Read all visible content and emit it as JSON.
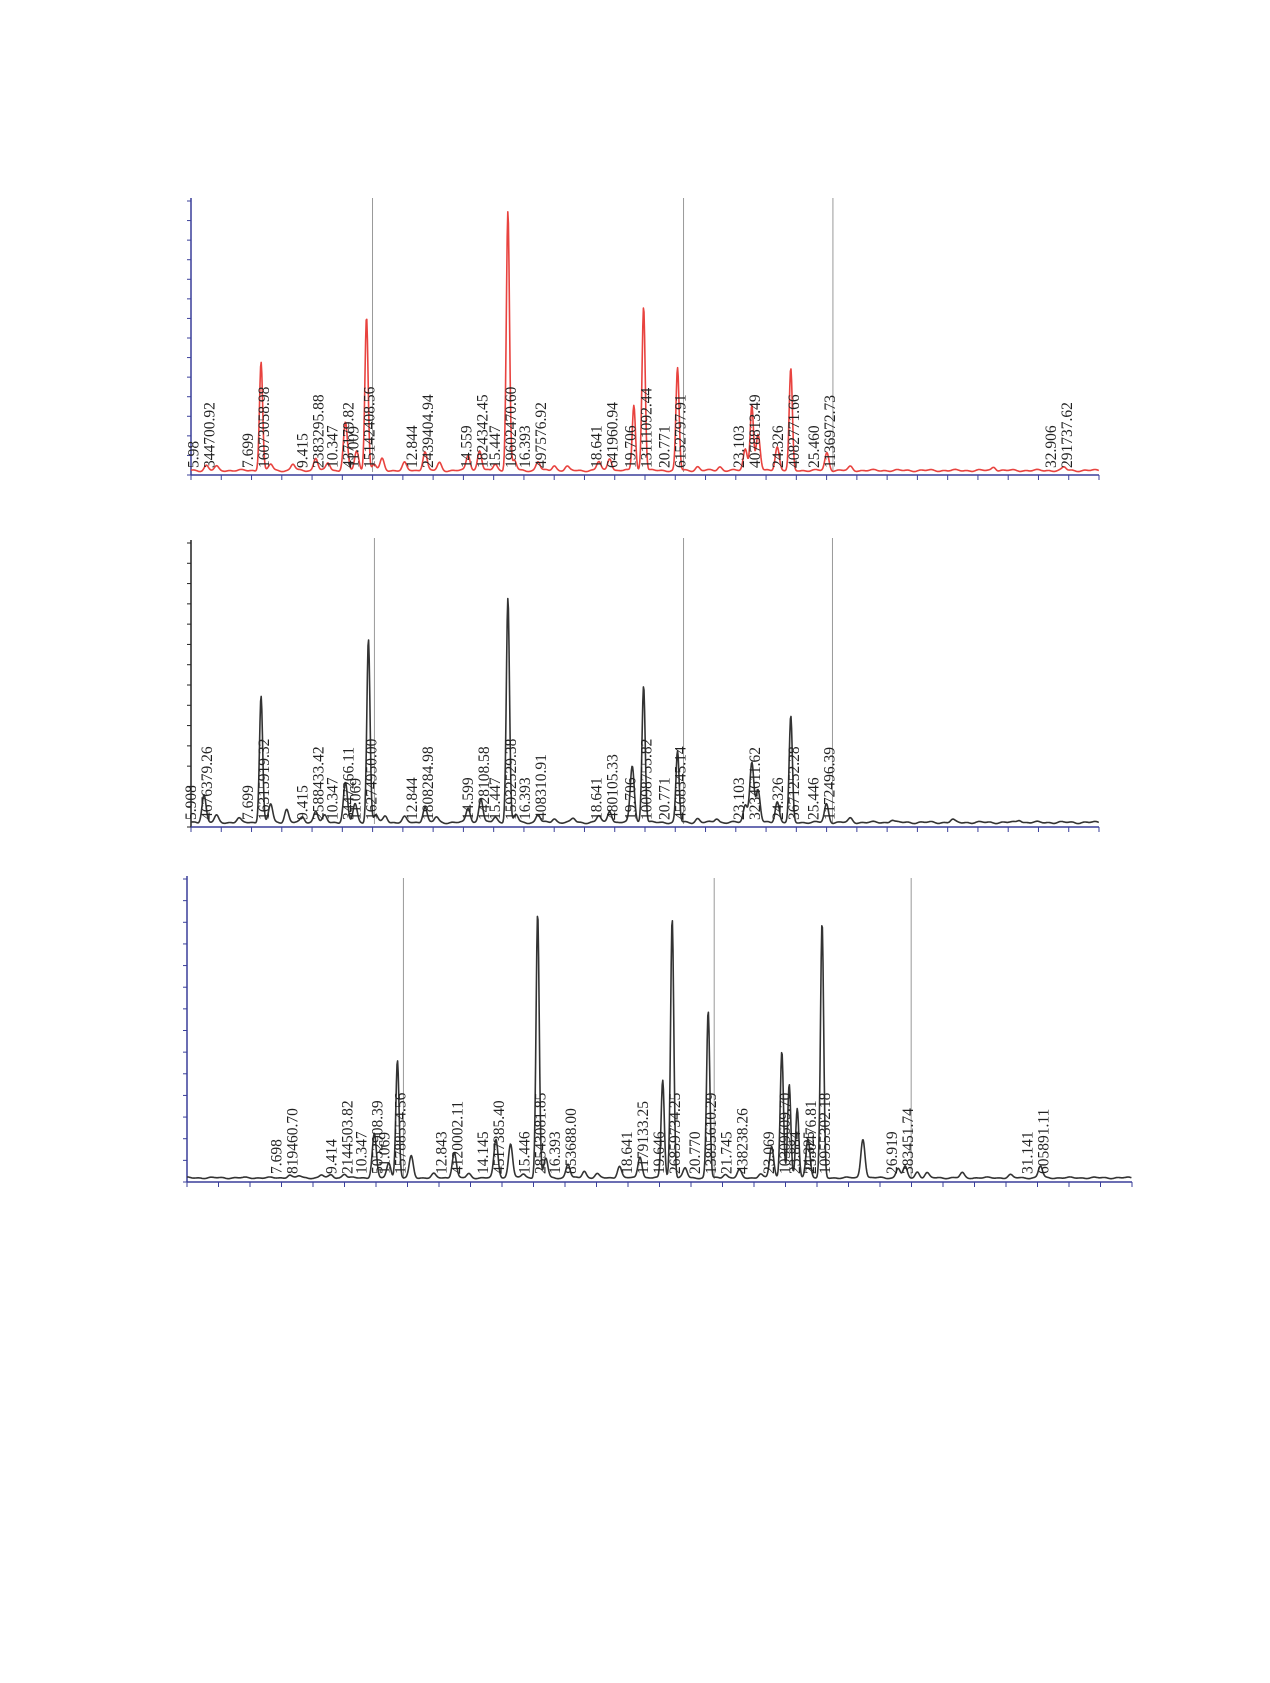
{
  "chart_data": [
    {
      "type": "line",
      "color": "#e8433f",
      "title": "",
      "xlabel": "",
      "ylabel": "",
      "xlim": [
        5.5,
        34.0
      ],
      "ylim": [
        0,
        21500000
      ],
      "grid": false,
      "marker_lines_at": [
        11.009,
        20.771,
        25.46
      ],
      "peaks": [
        {
          "rt": "5.98",
          "area": "344700.92",
          "x": 5.98,
          "h": 0.4
        },
        {
          "rt": "7.699",
          "area": "16073058.98",
          "x": 7.699,
          "h": 8.6
        },
        {
          "rt": "9.415",
          "area": "2383295.88",
          "x": 9.415,
          "h": 1.0
        },
        {
          "rt": "10.347",
          "area": "437179.82",
          "x": 10.347,
          "h": 3.8
        },
        {
          "rt": "11.009",
          "area": "15142408.56",
          "x": 11.009,
          "h": 12.2
        },
        {
          "rt": "12.844",
          "area": "2439404.94",
          "x": 12.844,
          "h": 1.5
        },
        {
          "rt": "14.559",
          "area": "1824342.45",
          "x": 14.559,
          "h": 1.6
        },
        {
          "rt": "15.447",
          "area": "19602470.60",
          "x": 15.447,
          "h": 20.5
        },
        {
          "rt": "16.393",
          "area": "497576.92",
          "x": 16.393,
          "h": 0.7
        },
        {
          "rt": "18.641",
          "area": "641960.94",
          "x": 18.641,
          "h": 1.0
        },
        {
          "rt": "19.706",
          "area": "13111092.44",
          "x": 19.706,
          "h": 13.0
        },
        {
          "rt": "20.771",
          "area": "6152797.91",
          "x": 20.771,
          "h": 8.1
        },
        {
          "rt": "23.103",
          "area": "4078813.49",
          "x": 23.103,
          "h": 5.2
        },
        {
          "rt": "24.326",
          "area": "4082771.66",
          "x": 24.326,
          "h": 8.0
        },
        {
          "rt": "25.460",
          "area": "1136972.73",
          "x": 25.46,
          "h": 1.4
        },
        {
          "rt": "32.906",
          "area": "291737.62",
          "x": 32.906,
          "h": 0.25
        }
      ],
      "minor_peaks": [
        [
          6.3,
          0.3
        ],
        [
          8.0,
          0.5
        ],
        [
          8.7,
          0.5
        ],
        [
          9.8,
          0.6
        ],
        [
          10.7,
          1.5
        ],
        [
          11.25,
          0.5
        ],
        [
          11.5,
          0.9
        ],
        [
          12.2,
          0.6
        ],
        [
          13.3,
          0.6
        ],
        [
          14.2,
          1.2
        ],
        [
          15.05,
          0.5
        ],
        [
          15.65,
          0.8
        ],
        [
          16.9,
          0.4
        ],
        [
          17.3,
          0.3
        ],
        [
          18.3,
          0.7
        ],
        [
          19.4,
          5.2
        ],
        [
          21.4,
          0.3
        ],
        [
          22.1,
          0.3
        ],
        [
          22.9,
          1.7
        ],
        [
          23.3,
          2.8
        ],
        [
          23.9,
          1.9
        ],
        [
          26.2,
          0.3
        ],
        [
          30.7,
          0.3
        ]
      ],
      "label_lines": [
        {
          "side": 0,
          "x": 5.98,
          "lines": [
            "5.98",
            "344700.92"
          ]
        },
        {
          "side": 0,
          "x": 7.699,
          "lines": [
            "7.699",
            "16073058.98"
          ]
        },
        {
          "side": 0,
          "x": 9.415,
          "lines": [
            "9.415",
            "2383295.88"
          ]
        },
        {
          "side": 0,
          "x": 10.347,
          "lines": [
            "10.347",
            "437179.82"
          ]
        },
        {
          "side": 0,
          "x": 11.009,
          "lines": [
            "11.009",
            "15142408.56"
          ]
        },
        {
          "side": 0,
          "x": 12.844,
          "lines": [
            "12.844",
            "2439404.94"
          ]
        },
        {
          "side": 0,
          "x": 14.559,
          "lines": [
            "14.559",
            "1824342.45"
          ]
        },
        {
          "side": 0,
          "x": 15.447,
          "lines": [
            "15.447",
            "19602470.60"
          ]
        },
        {
          "side": 0,
          "x": 16.393,
          "lines": [
            "16.393",
            "497576.92"
          ]
        },
        {
          "side": 0,
          "x": 18.641,
          "lines": [
            "18.641",
            "641960.94"
          ]
        },
        {
          "side": 0,
          "x": 19.706,
          "lines": [
            "19.706",
            "13111092.44"
          ]
        },
        {
          "side": 0,
          "x": 20.771,
          "lines": [
            "20.771",
            "6152797.91"
          ]
        },
        {
          "side": 0,
          "x": 23.103,
          "lines": [
            "23.103",
            "4078813.49"
          ]
        },
        {
          "side": 0,
          "x": 24.326,
          "lines": [
            "24.326",
            "4082771.66"
          ]
        },
        {
          "side": 0,
          "x": 25.46,
          "lines": [
            "25.460",
            "1136972.73"
          ]
        },
        {
          "side": 0,
          "x": 32.906,
          "lines": [
            "32.906",
            "291737.62"
          ]
        }
      ]
    },
    {
      "type": "line",
      "color": "#333333",
      "title": "",
      "xlabel": "",
      "ylabel": "",
      "xlim": [
        5.5,
        34.0
      ],
      "ylim": [
        0,
        21500000
      ],
      "grid": false,
      "marker_lines_at": [
        11.069,
        20.771,
        25.446
      ],
      "peaks": [
        {
          "rt": "5.908",
          "area": "4676379.26",
          "x": 5.908,
          "h": 2.1
        },
        {
          "rt": "7.699",
          "area": "16315919.32",
          "x": 7.699,
          "h": 9.6
        },
        {
          "rt": "9.415",
          "area": "2588433.42",
          "x": 9.415,
          "h": 0.9
        },
        {
          "rt": "10.347",
          "area": "3447266.11",
          "x": 10.347,
          "h": 3.0
        },
        {
          "rt": "11.069",
          "area": "16274950.00",
          "x": 11.069,
          "h": 13.9
        },
        {
          "rt": "12.844",
          "area": "1808284.98",
          "x": 12.844,
          "h": 1.2
        },
        {
          "rt": "14.599",
          "area": "1428108.58",
          "x": 14.599,
          "h": 1.8
        },
        {
          "rt": "15.447",
          "area": "15932529.38",
          "x": 15.447,
          "h": 17.0
        },
        {
          "rt": "16.393",
          "area": "408310.91",
          "x": 16.393,
          "h": 0.6
        },
        {
          "rt": "18.641",
          "area": "480105.33",
          "x": 18.641,
          "h": 0.9
        },
        {
          "rt": "19.706",
          "area": "10098755.82",
          "x": 19.706,
          "h": 10.4
        },
        {
          "rt": "20.771",
          "area": "4568345.14",
          "x": 20.771,
          "h": 5.4
        },
        {
          "rt": "23.103",
          "area": "3234611.62",
          "x": 23.103,
          "h": 4.6
        },
        {
          "rt": "24.326",
          "area": "3671252.28",
          "x": 24.326,
          "h": 8.0
        },
        {
          "rt": "25.446",
          "area": "1172496.39",
          "x": 25.446,
          "h": 1.4
        }
      ],
      "minor_peaks": [
        [
          6.3,
          0.5
        ],
        [
          7.0,
          0.3
        ],
        [
          8.0,
          1.4
        ],
        [
          8.5,
          1.0
        ],
        [
          9.0,
          0.4
        ],
        [
          9.7,
          0.5
        ],
        [
          10.65,
          1.4
        ],
        [
          11.3,
          0.6
        ],
        [
          11.6,
          0.5
        ],
        [
          12.2,
          0.4
        ],
        [
          13.2,
          0.4
        ],
        [
          14.2,
          1.1
        ],
        [
          15.05,
          0.4
        ],
        [
          15.7,
          0.6
        ],
        [
          16.9,
          0.3
        ],
        [
          17.5,
          0.3
        ],
        [
          18.3,
          0.5
        ],
        [
          19.35,
          4.3
        ],
        [
          21.4,
          0.3
        ],
        [
          22.0,
          0.3
        ],
        [
          22.9,
          1.3
        ],
        [
          23.3,
          2.4
        ],
        [
          23.9,
          1.6
        ],
        [
          26.2,
          0.3
        ],
        [
          27.5,
          0.2
        ],
        [
          29.4,
          0.2
        ],
        [
          31.5,
          0.2
        ]
      ],
      "label_lines": [
        {
          "side": 0,
          "x": 5.908,
          "lines": [
            "5.908",
            "4676379.26"
          ]
        },
        {
          "side": 0,
          "x": 7.699,
          "lines": [
            "7.699",
            "16315919.32"
          ]
        },
        {
          "side": 0,
          "x": 9.415,
          "lines": [
            "9.415",
            "2588433.42"
          ]
        },
        {
          "side": 0,
          "x": 10.347,
          "lines": [
            "10.347",
            "3447266.11"
          ]
        },
        {
          "side": 0,
          "x": 11.069,
          "lines": [
            "11.069",
            "16274950.00"
          ]
        },
        {
          "side": 0,
          "x": 12.844,
          "lines": [
            "12.844",
            "1808284.98"
          ]
        },
        {
          "side": 0,
          "x": 14.599,
          "lines": [
            "14.599",
            "1428108.58"
          ]
        },
        {
          "side": 0,
          "x": 15.447,
          "lines": [
            "15.447",
            "15932529.38"
          ]
        },
        {
          "side": 0,
          "x": 16.393,
          "lines": [
            "16.393",
            "408310.91"
          ]
        },
        {
          "side": 0,
          "x": 18.641,
          "lines": [
            "18.641",
            "480105.33"
          ]
        },
        {
          "side": 0,
          "x": 19.706,
          "lines": [
            "19.706",
            "10098755.82"
          ]
        },
        {
          "side": 0,
          "x": 20.771,
          "lines": [
            "20.771",
            "4568345.14"
          ]
        },
        {
          "side": 0,
          "x": 23.103,
          "lines": [
            "23.103",
            "3234611.62"
          ]
        },
        {
          "side": 0,
          "x": 24.326,
          "lines": [
            "24.326",
            "3671252.28"
          ]
        },
        {
          "side": 0,
          "x": 25.446,
          "lines": [
            "25.446",
            "1172496.39"
          ]
        }
      ]
    },
    {
      "type": "line",
      "color": "#333333",
      "title": "",
      "xlabel": "",
      "ylabel": "",
      "xlim": [
        4.5,
        34.0
      ],
      "ylim": [
        0,
        30500000
      ],
      "grid": false,
      "marker_lines_at": [
        11.069,
        20.77,
        26.919
      ],
      "peaks": [
        {
          "rt": "7.698",
          "area": "819460.70",
          "x": 7.698,
          "h": 0.3
        },
        {
          "rt": "9.414",
          "area": "2144503.82",
          "x": 9.414,
          "h": 0.4
        },
        {
          "rt": "10.347",
          "area": "5052908.39",
          "x": 10.347,
          "h": 4.5
        },
        {
          "rt": "11.069",
          "area": "15788554.56",
          "x": 11.069,
          "h": 12.0
        },
        {
          "rt": "12.843",
          "area": "4120002.11",
          "x": 12.843,
          "h": 2.6
        },
        {
          "rt": "14.145",
          "area": "4517385.40",
          "x": 14.145,
          "h": 3.9
        },
        {
          "rt": "15.446",
          "area": "28543081.85",
          "x": 15.446,
          "h": 27.0
        },
        {
          "rt": "16.393",
          "area": "853688.00",
          "x": 16.393,
          "h": 1.4
        },
        {
          "rt": "18.641",
          "area": "1179133.25",
          "x": 18.641,
          "h": 2.2
        },
        {
          "rt": "19.646",
          "area": "26859734.25",
          "x": 19.646,
          "h": 26.5
        },
        {
          "rt": "20.770",
          "area": "13895610.29",
          "x": 20.77,
          "h": 17.0
        },
        {
          "rt": "21.745",
          "area": "438238.26",
          "x": 21.745,
          "h": 0.8
        },
        {
          "rt": "23.069",
          "area": "10309609.70",
          "x": 23.069,
          "h": 13.0
        },
        {
          "rt": "23.884",
          "area": "2550476.81",
          "x": 23.884,
          "h": 4.0
        },
        {
          "rt": "24.325",
          "area": "10955302.18",
          "x": 24.325,
          "h": 26.0
        },
        {
          "rt": "26.919",
          "area": "383451.74",
          "x": 26.919,
          "h": 1.1
        },
        {
          "rt": "31.141",
          "area": "605891.11",
          "x": 31.141,
          "h": 1.2
        }
      ],
      "minor_peaks": [
        [
          8.0,
          0.2
        ],
        [
          8.7,
          0.3
        ],
        [
          9.0,
          0.3
        ],
        [
          10.8,
          1.5
        ],
        [
          11.5,
          2.2
        ],
        [
          12.2,
          0.4
        ],
        [
          13.3,
          0.4
        ],
        [
          14.6,
          3.5
        ],
        [
          15.0,
          0.4
        ],
        [
          15.7,
          2.0
        ],
        [
          16.9,
          0.7
        ],
        [
          17.3,
          0.4
        ],
        [
          18.0,
          1.2
        ],
        [
          19.35,
          10.0
        ],
        [
          20.05,
          1.0
        ],
        [
          21.3,
          0.4
        ],
        [
          22.4,
          0.4
        ],
        [
          22.75,
          3.2
        ],
        [
          23.3,
          9.5
        ],
        [
          23.55,
          7.0
        ],
        [
          25.6,
          4.0
        ],
        [
          26.7,
          1.0
        ],
        [
          27.3,
          0.6
        ],
        [
          27.6,
          0.5
        ],
        [
          28.7,
          0.5
        ],
        [
          30.2,
          0.3
        ]
      ],
      "label_lines": [
        {
          "side": 0,
          "x": 7.698,
          "lines": [
            "7.698",
            "819460.70"
          ]
        },
        {
          "side": 0,
          "x": 9.414,
          "lines": [
            "9.414",
            "2144503.82"
          ]
        },
        {
          "side": 0,
          "x": 10.347,
          "lines": [
            "10.347",
            "5052908.39"
          ]
        },
        {
          "side": 0,
          "x": 11.069,
          "lines": [
            "11.069",
            "15788554.56"
          ]
        },
        {
          "side": 0,
          "x": 12.843,
          "lines": [
            "12.843",
            "4120002.11"
          ]
        },
        {
          "side": 0,
          "x": 14.145,
          "lines": [
            "14.145",
            "4517385.40"
          ]
        },
        {
          "side": 0,
          "x": 15.446,
          "lines": [
            "15.446",
            "28543081.85"
          ]
        },
        {
          "side": 0,
          "x": 16.393,
          "lines": [
            "16.393",
            "853688.00"
          ]
        },
        {
          "side": 0,
          "x": 18.641,
          "lines": [
            "18.641",
            "1179133.25"
          ]
        },
        {
          "side": 0,
          "x": 19.646,
          "lines": [
            "19.646",
            "26859734.25"
          ]
        },
        {
          "side": 0,
          "x": 20.77,
          "lines": [
            "20.770",
            "13895610.29"
          ]
        },
        {
          "side": 0,
          "x": 21.745,
          "lines": [
            "21.745",
            "438238.26"
          ]
        },
        {
          "side": 0,
          "x": 23.069,
          "lines": [
            "23.069",
            "10309609.70"
          ]
        },
        {
          "side": 0,
          "x": 23.884,
          "lines": [
            "23.884",
            "2550476.81"
          ]
        },
        {
          "side": 0,
          "x": 24.325,
          "lines": [
            "24.325",
            "10955302.18"
          ]
        },
        {
          "side": 0,
          "x": 26.919,
          "lines": [
            "26.919",
            "383451.74"
          ]
        },
        {
          "side": 0,
          "x": 31.141,
          "lines": [
            "31.141",
            "605891.11"
          ]
        }
      ]
    }
  ]
}
